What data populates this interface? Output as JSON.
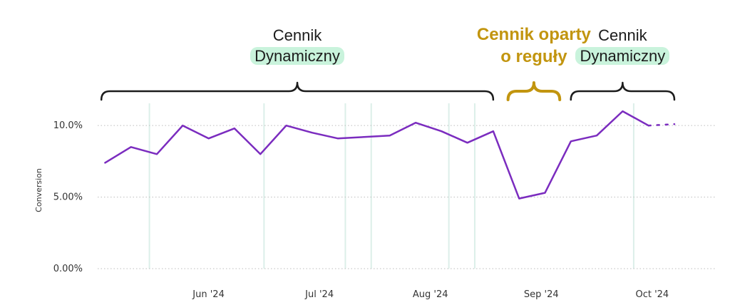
{
  "chart_data": {
    "type": "line",
    "ylabel": "Conversion",
    "ylim": [
      0,
      12.3
    ],
    "y_ticks": [
      0,
      5,
      10
    ],
    "y_tick_labels": [
      "0.00%",
      "5.00%",
      "10.0%"
    ],
    "x_range": [
      "2024-05-06",
      "2024-10-20"
    ],
    "x_ticks": [
      {
        "label": "Jun '24",
        "date": "2024-06-05"
      },
      {
        "label": "Jul '24",
        "date": "2024-07-05"
      },
      {
        "label": "Aug '24",
        "date": "2024-08-04"
      },
      {
        "label": "Sep '24",
        "date": "2024-09-03"
      },
      {
        "label": "Oct '24",
        "date": "2024-10-03"
      }
    ],
    "grid": {
      "horizontal": true,
      "vertical": true
    },
    "vertical_markers": [
      "2024-05-20",
      "2024-06-20",
      "2024-07-12",
      "2024-07-19",
      "2024-08-09",
      "2024-08-16",
      "2024-09-28"
    ],
    "series": [
      {
        "color": "#7b2cbf",
        "points": [
          {
            "date": "2024-05-08",
            "value": 7.4
          },
          {
            "date": "2024-05-15",
            "value": 8.5
          },
          {
            "date": "2024-05-22",
            "value": 8.0
          },
          {
            "date": "2024-05-29",
            "value": 10.0
          },
          {
            "date": "2024-06-05",
            "value": 9.1
          },
          {
            "date": "2024-06-12",
            "value": 9.8
          },
          {
            "date": "2024-06-19",
            "value": 8.0
          },
          {
            "date": "2024-06-26",
            "value": 10.0
          },
          {
            "date": "2024-07-03",
            "value": 9.5
          },
          {
            "date": "2024-07-10",
            "value": 9.1
          },
          {
            "date": "2024-07-17",
            "value": 9.2
          },
          {
            "date": "2024-07-24",
            "value": 9.3
          },
          {
            "date": "2024-07-31",
            "value": 10.2
          },
          {
            "date": "2024-08-07",
            "value": 9.6
          },
          {
            "date": "2024-08-14",
            "value": 8.8
          },
          {
            "date": "2024-08-21",
            "value": 9.6
          },
          {
            "date": "2024-08-28",
            "value": 4.9
          },
          {
            "date": "2024-09-04",
            "value": 5.3
          },
          {
            "date": "2024-09-11",
            "value": 8.9
          },
          {
            "date": "2024-09-18",
            "value": 9.3
          },
          {
            "date": "2024-09-25",
            "value": 11.0
          },
          {
            "date": "2024-10-02",
            "value": 10.0
          }
        ],
        "projection": [
          {
            "date": "2024-10-02",
            "value": 10.0
          },
          {
            "date": "2024-10-09",
            "value": 10.1
          }
        ]
      }
    ],
    "annotations": [
      {
        "line1": "Cennik",
        "line2": "Dynamiczny",
        "from": "2024-05-07",
        "to": "2024-08-21",
        "style": "dynamic"
      },
      {
        "line1": "Cennik oparty",
        "line2": "o reguły",
        "from": "2024-08-25",
        "to": "2024-09-08",
        "style": "rule"
      },
      {
        "line1": "Cennik",
        "line2": "Dynamiczny",
        "from": "2024-09-11",
        "to": "2024-10-09",
        "style": "dynamic"
      }
    ]
  },
  "colors": {
    "line": "#7b2cbf",
    "marker": "#dcefe9",
    "gridline": "#bdbdbd",
    "highlight": "#c9f3dc",
    "rule_text": "#c2950f",
    "dynamic_text": "#1c1c1c"
  }
}
